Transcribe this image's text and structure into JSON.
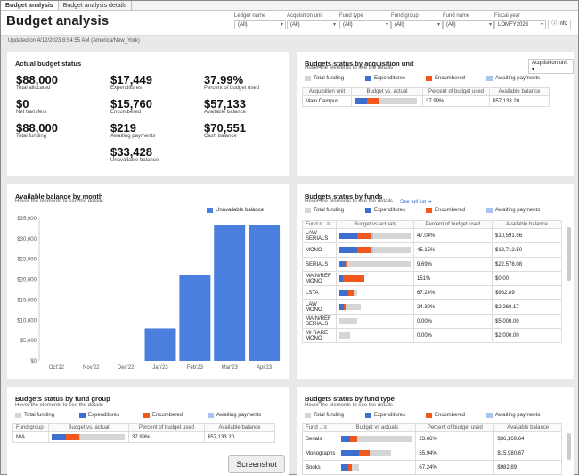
{
  "tabs": [
    "Budget analysis",
    "Budget analysis details"
  ],
  "header": {
    "title": "Budget analysis",
    "info": "Info"
  },
  "filters": [
    {
      "label": "Ledger name",
      "value": "(All)"
    },
    {
      "label": "Acquisition unit",
      "value": "(All)"
    },
    {
      "label": "Fund type",
      "value": "(All)"
    },
    {
      "label": "Fund group",
      "value": "(All)"
    },
    {
      "label": "Fund name",
      "value": "(All)"
    },
    {
      "label": "Fiscal year",
      "value": "LOMFY2023"
    }
  ],
  "updated": "Updated on 4/12/2023 8:54:55 AM (America/New_York)",
  "actual": {
    "title": "Actual budget status",
    "kpis": [
      {
        "value": "$88,000",
        "label": "Total allocated"
      },
      {
        "value": "$0",
        "label": "Net transfers"
      },
      {
        "value": "$88,000",
        "label": "Total funding"
      },
      {
        "value": "$17,449",
        "label": "Expenditures"
      },
      {
        "value": "$15,760",
        "label": "Encumbered"
      },
      {
        "value": "$219",
        "label": "Awaiting payments"
      },
      {
        "value": "$33,428",
        "label": "Unavailable balance"
      },
      {
        "value": "37.99%",
        "label": "Percent of budget used"
      },
      {
        "value": "$57,133",
        "label": "Available balance"
      },
      {
        "value": "$70,551",
        "label": "Cash balance"
      }
    ]
  },
  "legend": {
    "total": "Total funding",
    "exp": "Expenditures",
    "enc": "Encumbered",
    "awa": "Awaiting payments"
  },
  "acq": {
    "title": "Budgets status by acquisition unit",
    "sub": "Hover the elements to see the details",
    "select": "Acquisition unit",
    "headers": [
      "Acquisition unit",
      "Budget vs. actual",
      "Percent of budget used",
      "Available balance"
    ],
    "rows": [
      {
        "name": "Main Campus",
        "exp": 0.2,
        "enc": 0.18,
        "awa": 0.01,
        "pct": "37.99%",
        "avail": "$57,133.20"
      }
    ]
  },
  "month": {
    "title": "Available balance by month",
    "sub": "Hover the elements to see the details",
    "legend": "Unavailable balance",
    "yticks": [
      "$35,000",
      "$30,000",
      "$25,000",
      "$20,000",
      "$15,000",
      "$10,000",
      "$5,000",
      "$0"
    ]
  },
  "chart_data": {
    "type": "bar",
    "title": "Available balance by month",
    "categories": [
      "Oct'22",
      "Nov'22",
      "Dec'22",
      "Jan'23",
      "Feb'23",
      "Mar'23",
      "Apr'23"
    ],
    "series": [
      {
        "name": "Unavailable balance",
        "values": [
          0,
          0,
          0,
          8000,
          21000,
          33400,
          33400
        ]
      }
    ],
    "ylim": [
      0,
      35000
    ],
    "color": "#4a7fde"
  },
  "funds": {
    "title": "Budgets status by funds",
    "sub": "Hover the elements to see the details",
    "link": "See full list ➔",
    "headers": [
      "Fund n..",
      "Budget vs actuals",
      "Percent of budget used",
      "Available balance"
    ],
    "rows": [
      {
        "name": "LAW SERIALS",
        "exp": 0.25,
        "enc": 0.2,
        "awa": 0.02,
        "pct": "47.04%",
        "avail": "$10,591.56"
      },
      {
        "name": "MONO",
        "exp": 0.25,
        "enc": 0.2,
        "awa": 0.02,
        "pct": "45.15%",
        "avail": "$13,712.50"
      },
      {
        "name": "SERIALS",
        "exp": 0.08,
        "enc": 0.02,
        "awa": 0,
        "pct": "9.69%",
        "avail": "$22,578.08"
      },
      {
        "name": "MAIN/REF MONO",
        "exp": 0.05,
        "enc": 0.3,
        "awa": 0,
        "tot": 0.35,
        "pct": "151%",
        "avail": "$0.00"
      },
      {
        "name": "LSTA",
        "exp": 0.12,
        "enc": 0.08,
        "awa": 0,
        "tot": 0.25,
        "pct": "67.24%",
        "avail": "$982.89"
      },
      {
        "name": "LAW MONO",
        "exp": 0.06,
        "enc": 0.03,
        "awa": 0,
        "tot": 0.3,
        "pct": "24.39%",
        "avail": "$2,268.17"
      },
      {
        "name": "MAIN/REF SERIALS",
        "exp": 0,
        "enc": 0,
        "awa": 0,
        "tot": 0.25,
        "pct": "0.00%",
        "avail": "$5,000.00"
      },
      {
        "name": "MI RARE MONO",
        "exp": 0,
        "enc": 0,
        "awa": 0,
        "tot": 0.15,
        "pct": "0.00%",
        "avail": "$2,000.00"
      }
    ]
  },
  "group": {
    "title": "Budgets status by fund group",
    "sub": "Hover the elements to see the details",
    "headers": [
      "Fund group",
      "Budget vs. actual",
      "Percent of budget used",
      "Available balance"
    ],
    "rows": [
      {
        "name": "N/A",
        "exp": 0.2,
        "enc": 0.18,
        "awa": 0.01,
        "pct": "37.99%",
        "avail": "$57,133.20"
      }
    ]
  },
  "ftype": {
    "title": "Budgets status by fund type",
    "sub": "Hover the elements to see the details",
    "headers": [
      "Fund ..",
      "Budget vs actuals",
      "Percent of budget used",
      "Available balance"
    ],
    "rows": [
      {
        "name": "Serials",
        "exp": 0.12,
        "enc": 0.1,
        "awa": 0,
        "pct": "23.66%",
        "avail": "$36,169.64"
      },
      {
        "name": "Monographs",
        "exp": 0.25,
        "enc": 0.15,
        "awa": 0,
        "tot": 0.7,
        "pct": "55.94%",
        "avail": "$15,980.67"
      },
      {
        "name": "Books",
        "exp": 0.1,
        "enc": 0.05,
        "awa": 0,
        "tot": 0.25,
        "pct": "67.24%",
        "avail": "$982.89"
      }
    ]
  },
  "screenshot_btn": "Screenshot"
}
